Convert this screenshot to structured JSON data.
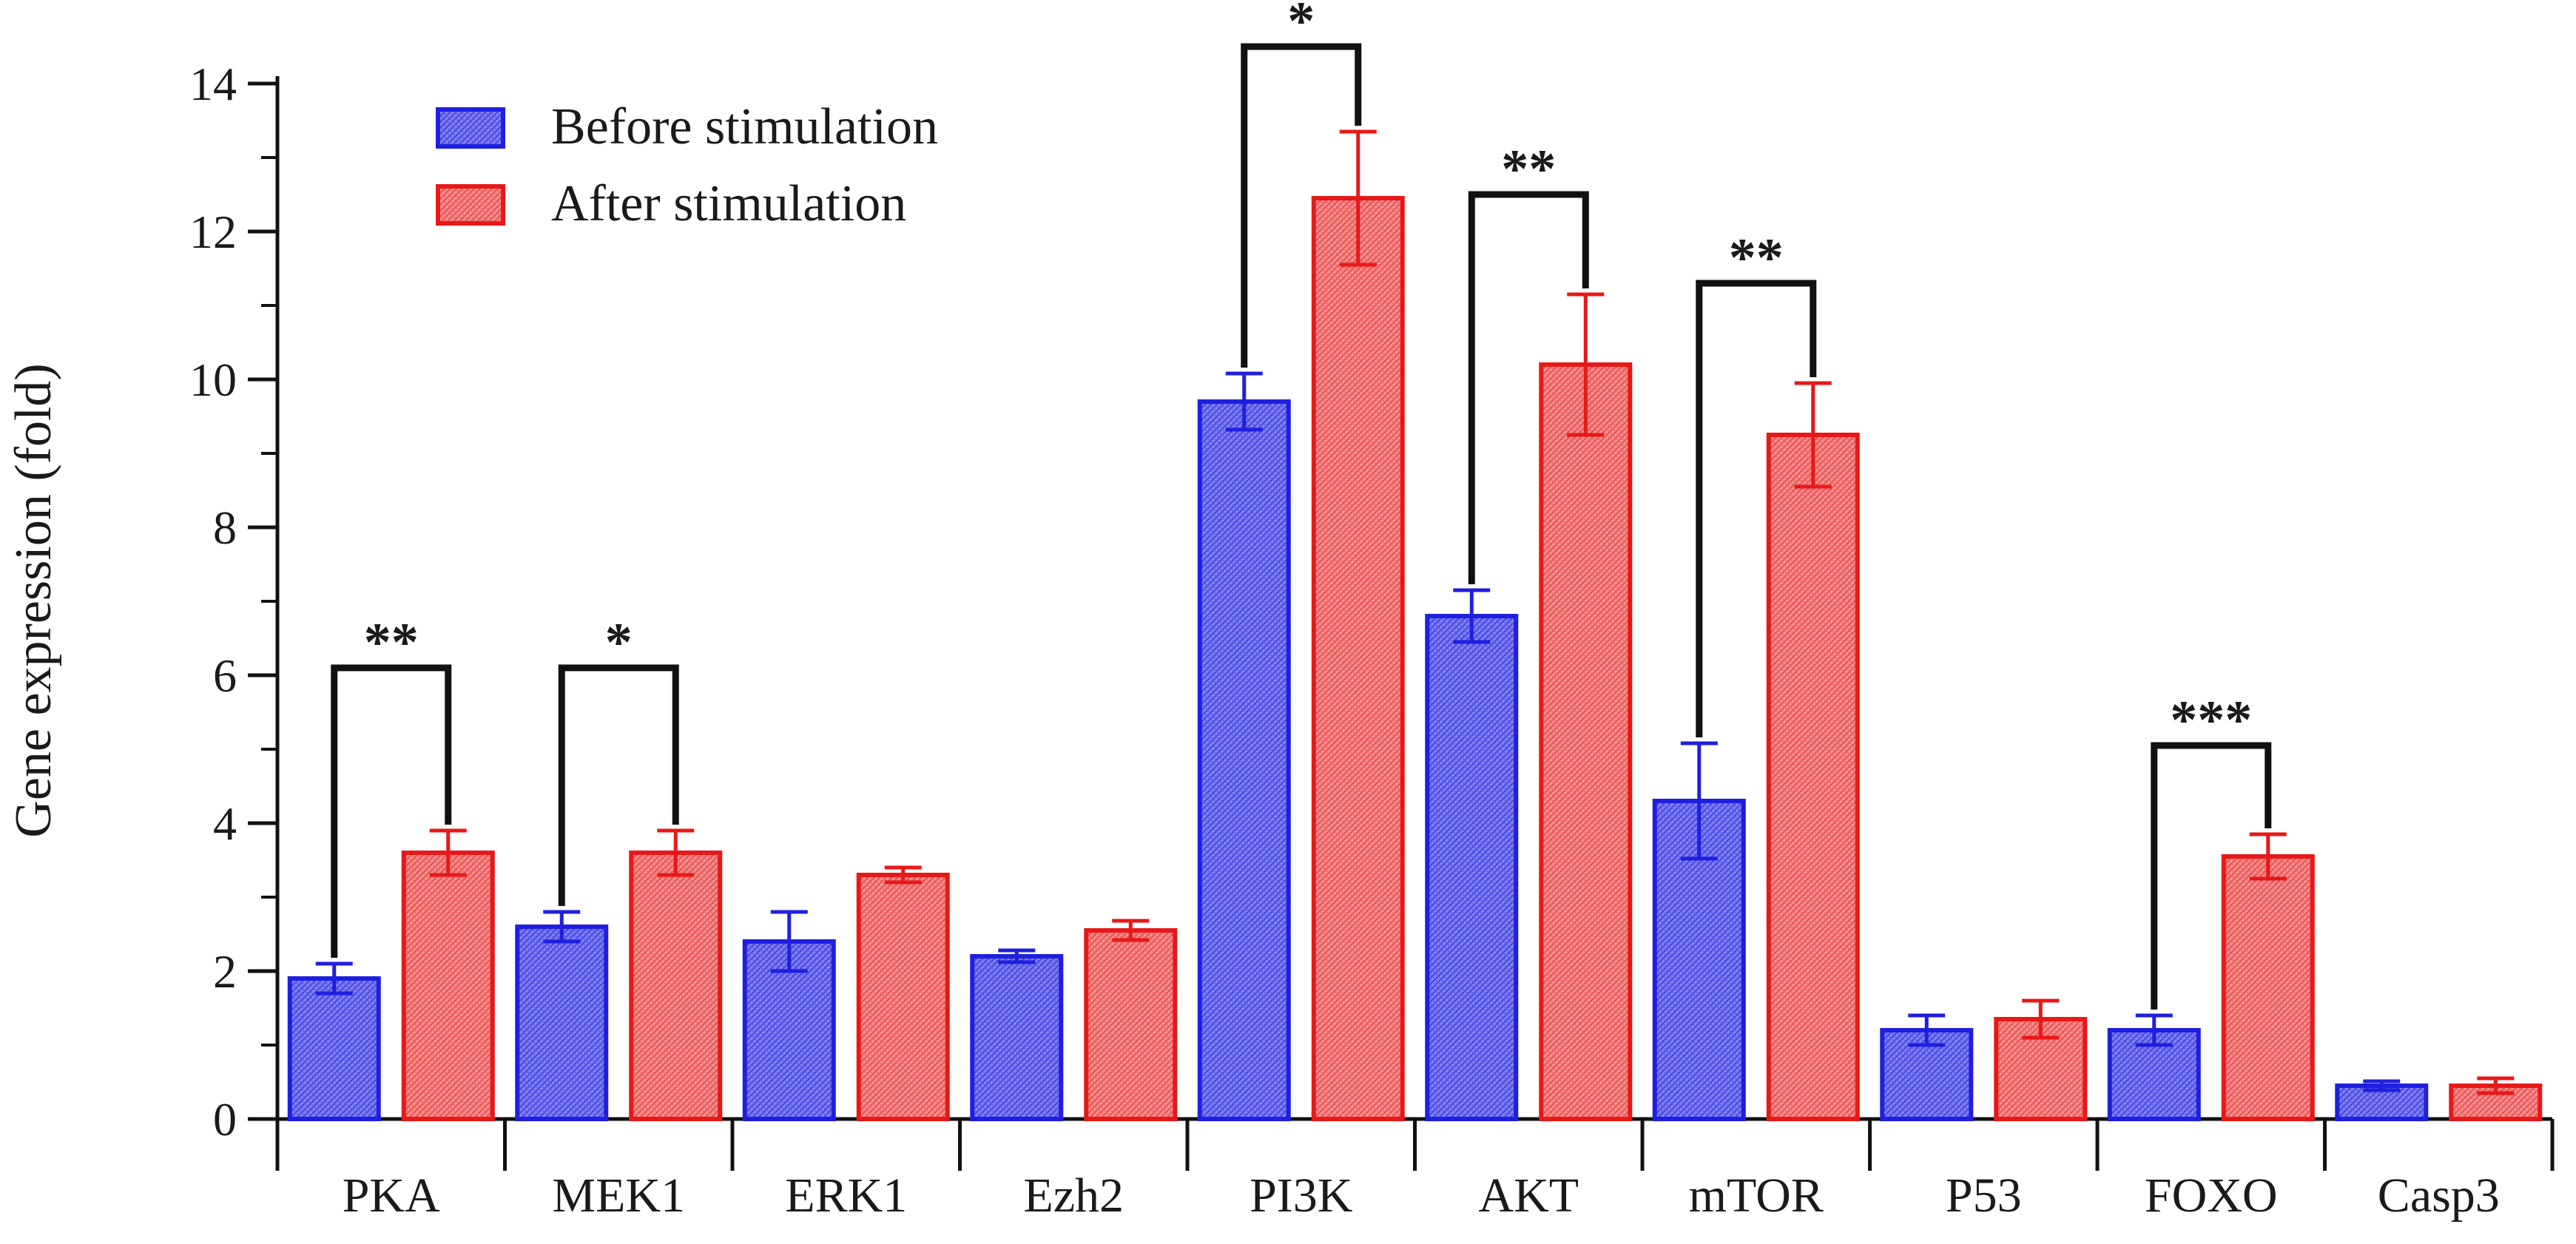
{
  "chart_data": {
    "type": "bar",
    "title": "",
    "xlabel": "",
    "ylabel": "Gene expression (fold)",
    "ylim": [
      0,
      14
    ],
    "yticks": [
      0,
      2,
      4,
      6,
      8,
      10,
      12,
      14
    ],
    "categories": [
      "PKA",
      "MEK1",
      "ERK1",
      "Ezh2",
      "PI3K",
      "AKT",
      "mTOR",
      "P53",
      "FOXO",
      "Casp3"
    ],
    "series": [
      {
        "name": "Before stimulation",
        "color": "#1f1fe0",
        "fill": "#6f6fe8",
        "values": [
          1.9,
          2.6,
          2.4,
          2.2,
          9.7,
          6.8,
          4.3,
          1.2,
          1.2,
          0.45
        ],
        "errors": [
          0.2,
          0.2,
          0.4,
          0.08,
          0.38,
          0.35,
          0.78,
          0.2,
          0.2,
          0.06
        ]
      },
      {
        "name": "After stimulation",
        "color": "#e81818",
        "fill": "#f07a7a",
        "values": [
          3.6,
          3.6,
          3.3,
          2.55,
          12.45,
          10.2,
          9.25,
          1.35,
          3.55,
          0.45
        ],
        "errors": [
          0.3,
          0.3,
          0.1,
          0.13,
          0.9,
          0.95,
          0.7,
          0.25,
          0.3,
          0.1
        ]
      }
    ],
    "significance": [
      {
        "category": "PKA",
        "label": "**",
        "level": 6.1
      },
      {
        "category": "MEK1",
        "label": "*",
        "level": 6.1
      },
      {
        "category": "PI3K",
        "label": "*",
        "level": 14.5
      },
      {
        "category": "AKT",
        "label": "**",
        "level": 12.5
      },
      {
        "category": "mTOR",
        "label": "**",
        "level": 11.3
      },
      {
        "category": "FOXO",
        "label": "***",
        "level": 5.05
      }
    ],
    "legend_position": "top-left",
    "grid": false
  }
}
